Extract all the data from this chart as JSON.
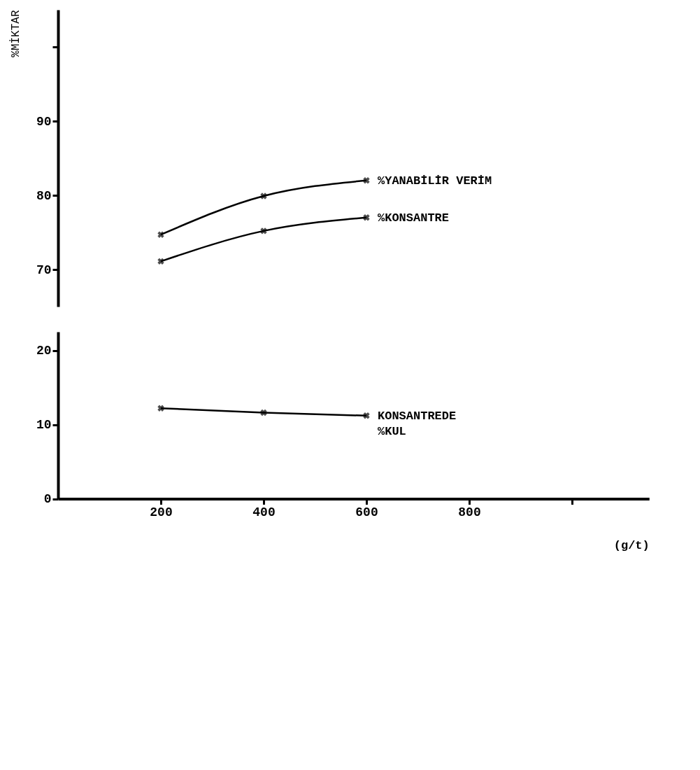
{
  "chart_data": [
    {
      "type": "line",
      "ylabel": "%MİKTAR",
      "x": [
        200,
        400,
        600
      ],
      "xlim": [
        0,
        1150
      ],
      "ylim": [
        65,
        105
      ],
      "yticks": [
        70,
        80,
        90,
        {
          "value": 100,
          "label": null
        }
      ],
      "tick_labels": "y",
      "grid": false,
      "legend": false,
      "marker": "cross",
      "line_style": "solid",
      "series": [
        {
          "name": "%YANABİLİR VERİM",
          "color": "#000000",
          "values": [
            74.7,
            79.9,
            82.0
          ]
        },
        {
          "name": "%KONSANTRE",
          "color": "#000000",
          "values": [
            71.1,
            75.2,
            77.0
          ]
        }
      ]
    },
    {
      "type": "line",
      "xlabel": "(g/t)",
      "x": [
        200,
        400,
        600
      ],
      "xlim": [
        0,
        1150
      ],
      "ylim": [
        0,
        22.5
      ],
      "xticks": [
        200,
        400,
        600,
        800,
        {
          "value": 1000,
          "label": null
        }
      ],
      "yticks": [
        0,
        10,
        20
      ],
      "grid": false,
      "legend": false,
      "marker": "cross",
      "line_style": "solid",
      "series": [
        {
          "name": "KONSANTREDE\n%KUL",
          "color": "#000000",
          "values": [
            12.2,
            11.6,
            11.2
          ]
        }
      ]
    }
  ]
}
